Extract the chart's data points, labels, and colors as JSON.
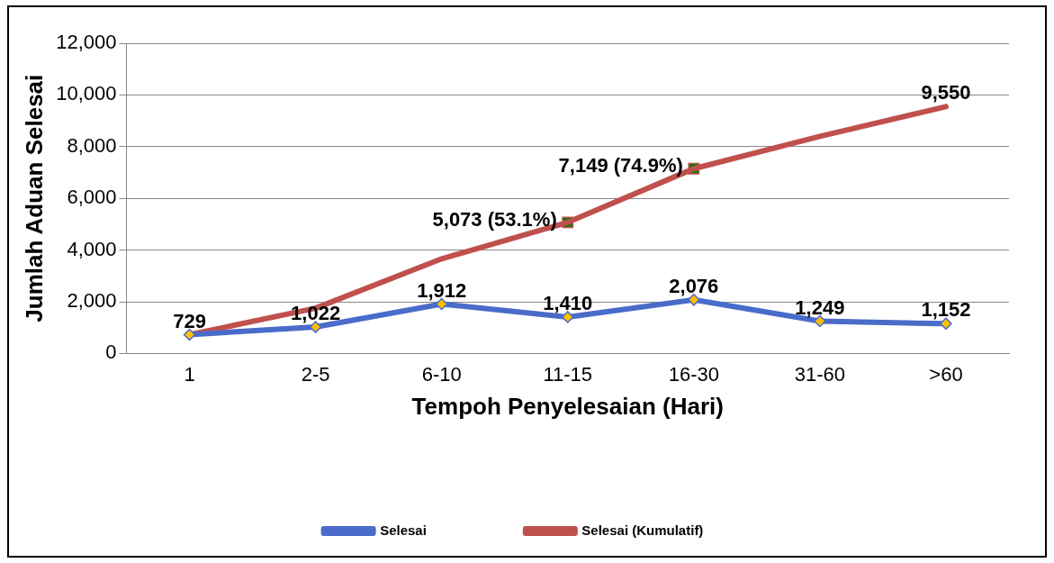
{
  "chart_data": {
    "type": "line",
    "xlabel": "Tempoh Penyelesaian (Hari)",
    "ylabel": "Jumlah Aduan Selesai",
    "categories": [
      "1",
      "2-5",
      "6-10",
      "11-15",
      "16-30",
      "31-60",
      ">60"
    ],
    "ylim": [
      0,
      12000
    ],
    "yticks": [
      {
        "value": 0,
        "label": "0"
      },
      {
        "value": 2000,
        "label": "2,000"
      },
      {
        "value": 4000,
        "label": "4,000"
      },
      {
        "value": 6000,
        "label": "6,000"
      },
      {
        "value": 8000,
        "label": "8,000"
      },
      {
        "value": 10000,
        "label": "10,000"
      },
      {
        "value": 12000,
        "label": "12,000"
      }
    ],
    "grid": "y",
    "legend": "bottom",
    "series": [
      {
        "name": "Selesai",
        "color": "#4a6cc9",
        "marker": "diamond",
        "values": [
          729,
          1022,
          1912,
          1410,
          2076,
          1249,
          1152
        ],
        "value_labels": [
          "729",
          "1,022",
          "1,912",
          "1,410",
          "2,076",
          "1,249",
          "1,152"
        ]
      },
      {
        "name": "Selesai (Kumulatif)",
        "color": "#c0504d",
        "marker": "none",
        "values": [
          729,
          1751,
          3663,
          5073,
          7149,
          8398,
          9550
        ],
        "value_labels": [
          null,
          null,
          null,
          "5,073 (53.1%)",
          "7,149 (74.9%)",
          null,
          "9,550"
        ]
      },
      {
        "type": "scatter",
        "color": "#008000",
        "marker": "square",
        "x": [
          "11-15",
          "16-30"
        ],
        "values": [
          5073,
          7149
        ]
      }
    ]
  }
}
